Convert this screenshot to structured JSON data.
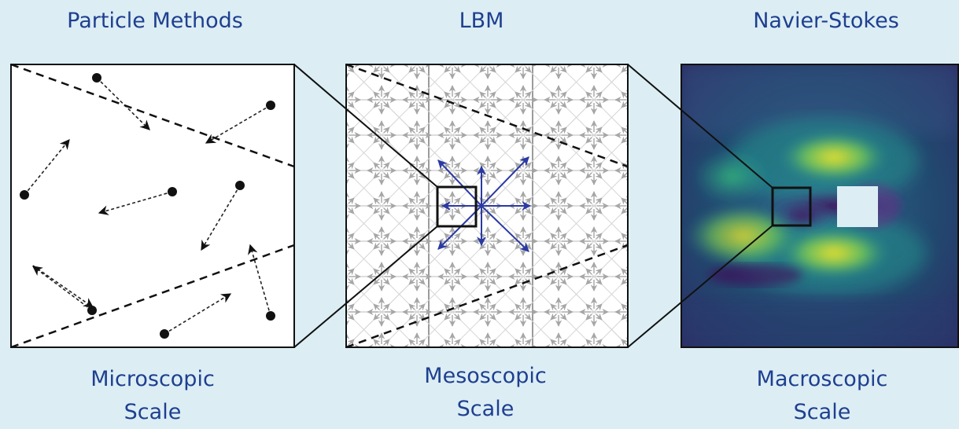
{
  "titles": {
    "particle": "Particle Methods",
    "lbm": "LBM",
    "navier_stokes": "Navier-Stokes"
  },
  "scales": {
    "micro_line1": "Microscopic",
    "micro_line2": "Scale",
    "meso_line1": "Mesoscopic",
    "meso_line2": "Scale",
    "macro_line1": "Macroscopic",
    "macro_line2": "Scale"
  },
  "colors": {
    "background": "#dceef4",
    "text": "#1f3f8f",
    "lattice_arrow": "#a6a6a6",
    "highlight_arrow": "#2b3aa3",
    "field_low": "#440154",
    "field_high": "#fde725"
  },
  "icons": [
    "particle-dot-icon",
    "velocity-arrow-icon",
    "lattice-arrow-icon",
    "zoom-box-icon"
  ]
}
